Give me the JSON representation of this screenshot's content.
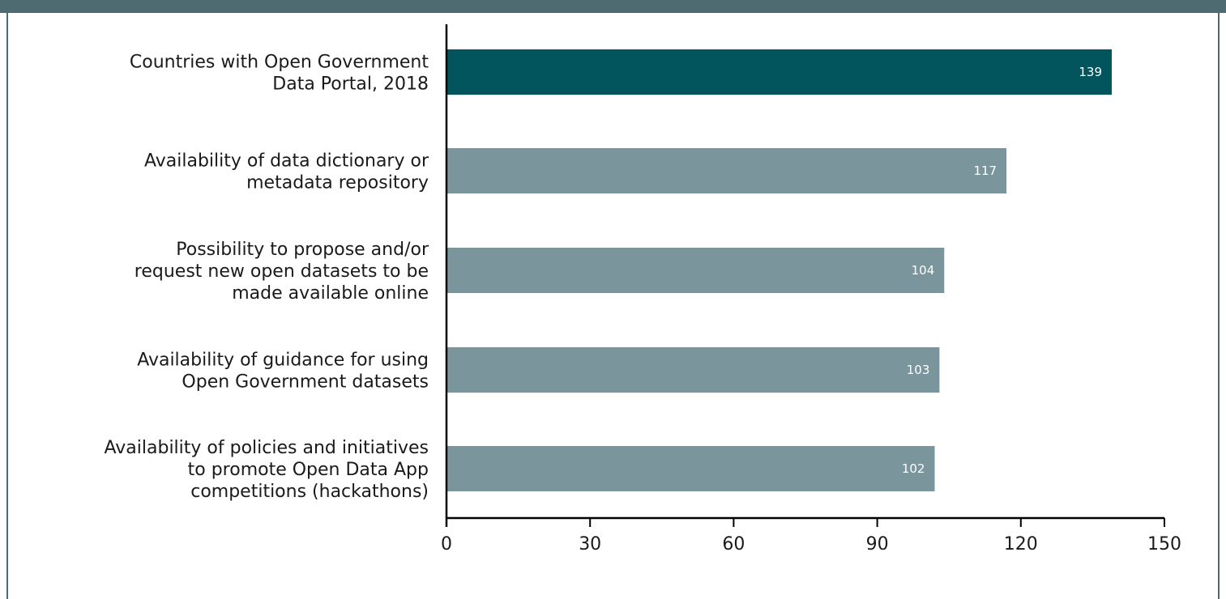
{
  "colors": {
    "frame": "#4e6b72",
    "highlight_bar": "#02555c",
    "bar": "#7a969c",
    "axis": "#000000"
  },
  "chart_data": {
    "type": "bar",
    "orientation": "horizontal",
    "categories": [
      [
        "Countries with Open Government",
        "Data Portal, 2018"
      ],
      [
        "Availability of data dictionary or",
        "metadata repository"
      ],
      [
        "Possibility to propose and/or",
        "request new open datasets to be",
        "made available online"
      ],
      [
        "Availability of guidance for using",
        "Open Government datasets"
      ],
      [
        "Availability of policies and initiatives",
        "to promote Open Data App",
        "competitions (hackathons)"
      ]
    ],
    "values": [
      139,
      117,
      104,
      103,
      102
    ],
    "value_labels": [
      "139",
      "117",
      "104",
      "103",
      "102"
    ],
    "highlighted_index": 0,
    "xlim": [
      0,
      150
    ],
    "xticks": [
      0,
      30,
      60,
      90,
      120,
      150
    ],
    "xtick_labels": [
      "0",
      "30",
      "60",
      "90",
      "120",
      "150"
    ],
    "grid": false,
    "legend": "none",
    "title": "",
    "xlabel": "",
    "ylabel": ""
  }
}
